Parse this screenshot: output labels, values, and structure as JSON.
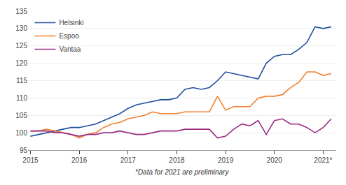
{
  "chart_data": {
    "type": "line",
    "x": [
      2015,
      2015.1666,
      2015.3332,
      2015.4998,
      2015.6664,
      2015.833,
      2015.9996,
      2016.1662,
      2016.3328,
      2016.4994,
      2016.666,
      2016.8326,
      2016.9992,
      2017.1658,
      2017.3324,
      2017.499,
      2017.6656,
      2017.8322,
      2017.9988,
      2018.1654,
      2018.332,
      2018.4986,
      2018.6652,
      2018.8318,
      2018.9984,
      2019.165,
      2019.3316,
      2019.4982,
      2019.6648,
      2019.8314,
      2019.998,
      2020.1646,
      2020.3312,
      2020.4978,
      2020.6644,
      2020.831,
      2020.9976,
      2021.1642
    ],
    "series": [
      {
        "name": "Helsinki",
        "color": "#2050A0",
        "values": [
          99.0,
          99.5,
          100.0,
          100.5,
          101.0,
          101.5,
          101.5,
          102.0,
          102.5,
          103.5,
          104.5,
          105.5,
          107.0,
          108.0,
          108.5,
          109.0,
          109.5,
          109.5,
          110.0,
          112.5,
          113.0,
          112.5,
          113.0,
          115.0,
          117.5,
          117.0,
          116.5,
          116.0,
          115.5,
          120.0,
          122.0,
          122.5,
          122.5,
          124.0,
          126.0,
          130.5,
          130.0,
          130.5
        ]
      },
      {
        "name": "Espoo",
        "color": "#F08030",
        "values": [
          100.5,
          100.5,
          101.0,
          100.5,
          100.0,
          99.5,
          98.5,
          99.5,
          100.0,
          101.5,
          102.5,
          103.0,
          104.0,
          104.5,
          105.0,
          106.0,
          105.5,
          105.5,
          105.5,
          106.0,
          106.0,
          106.0,
          106.0,
          110.5,
          106.5,
          107.5,
          107.5,
          107.5,
          110.0,
          110.5,
          110.5,
          111.0,
          113.0,
          114.5,
          117.5,
          117.5,
          116.5,
          117.0
        ]
      },
      {
        "name": "Vantaa",
        "color": "#9B2D82",
        "values": [
          100.5,
          100.5,
          100.5,
          100.0,
          100.0,
          99.5,
          99.0,
          99.5,
          99.5,
          100.0,
          100.0,
          100.5,
          100.0,
          99.5,
          99.5,
          100.0,
          100.5,
          100.5,
          100.5,
          101.0,
          101.0,
          101.0,
          101.0,
          98.5,
          99.0,
          101.0,
          102.5,
          102.0,
          103.5,
          99.5,
          103.5,
          104.0,
          102.5,
          102.5,
          101.5,
          100.0,
          101.5,
          104.0
        ]
      }
    ],
    "xlim": [
      2014.95,
      2021.2642
    ],
    "xticks": [
      {
        "value": 2015,
        "label": "2015"
      },
      {
        "value": 2015.9996,
        "label": "2016"
      },
      {
        "value": 2016.9992,
        "label": "2017"
      },
      {
        "value": 2017.9988,
        "label": "2018"
      },
      {
        "value": 2018.9984,
        "label": "2019"
      },
      {
        "value": 2019.998,
        "label": "2020"
      },
      {
        "value": 2020.9976,
        "label": "2021*"
      }
    ],
    "ylim": [
      95,
      135
    ],
    "yticks": [
      95,
      100,
      105,
      110,
      115,
      120,
      125,
      130,
      135
    ],
    "grid": "y",
    "legend": "upper left",
    "annotations": [
      "*Data for 2021 are preliminary"
    ]
  }
}
